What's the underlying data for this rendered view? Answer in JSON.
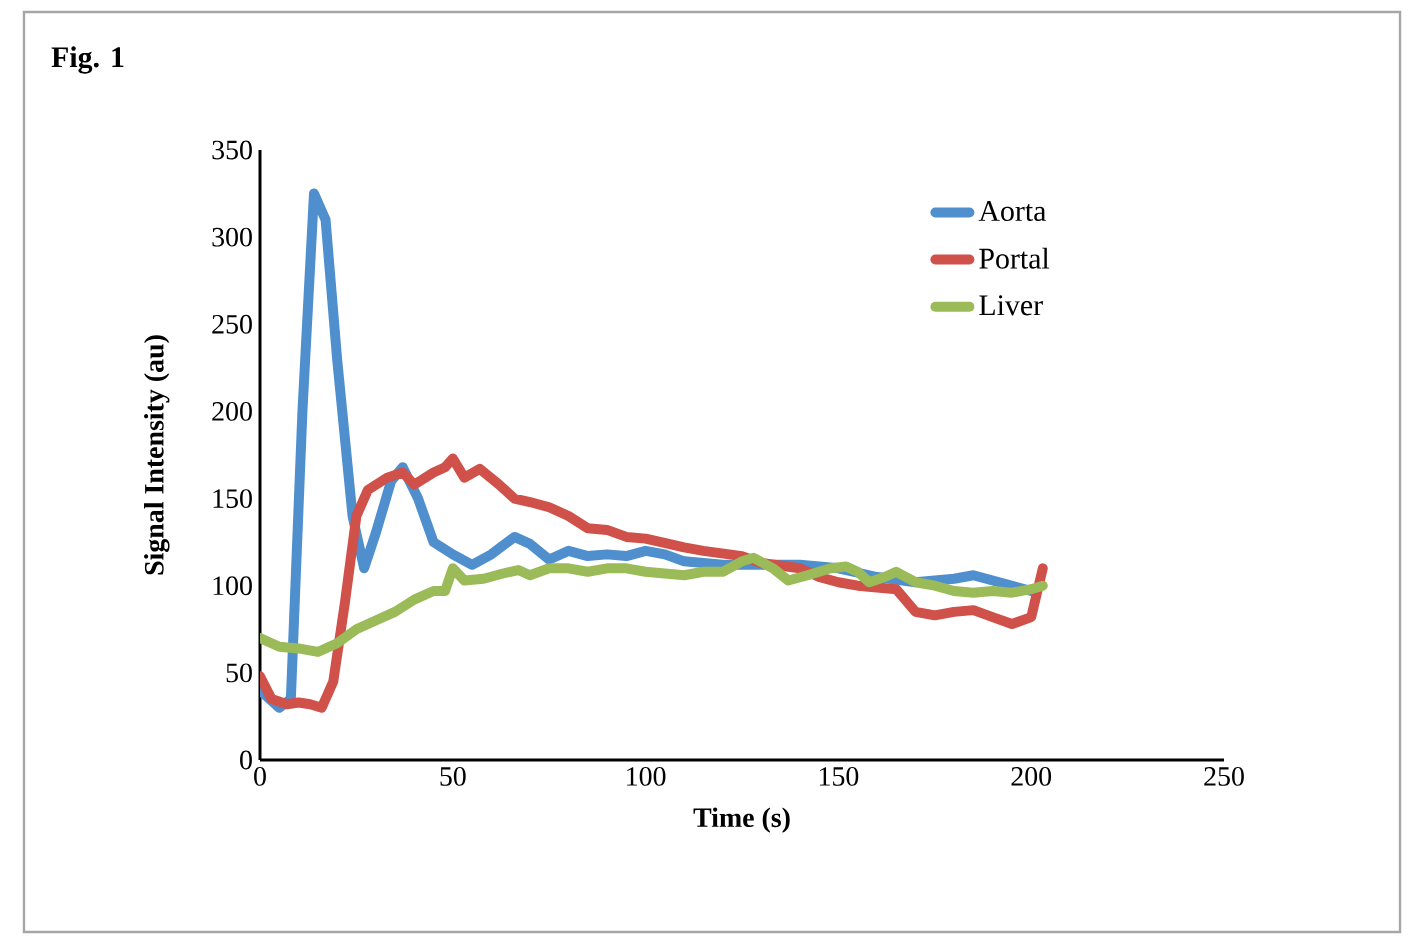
{
  "chart_data": {
    "type": "line",
    "title": "Fig. 1",
    "xlabel": "Time (s)",
    "ylabel": "Signal Intensity (au)",
    "xlim": [
      0,
      250
    ],
    "xticks": [
      0,
      50,
      100,
      150,
      200,
      250
    ],
    "ylim": [
      0,
      350
    ],
    "yticks": [
      0,
      50,
      100,
      150,
      200,
      250,
      300,
      350
    ],
    "grid": false,
    "legend": "top right",
    "marker": "none",
    "line_style": "solid",
    "series": [
      {
        "name": "Aorta",
        "color": "#4f8fcd",
        "x": [
          0,
          5,
          8,
          11,
          14,
          17,
          20,
          24,
          27,
          30,
          34,
          37,
          41,
          45,
          50,
          55,
          60,
          66,
          70,
          75,
          80,
          85,
          90,
          95,
          100,
          105,
          110,
          120,
          130,
          140,
          150,
          160,
          170,
          180,
          185,
          190,
          195,
          200
        ],
        "values": [
          40,
          30,
          35,
          200,
          325,
          310,
          230,
          140,
          110,
          130,
          160,
          168,
          150,
          125,
          118,
          112,
          118,
          128,
          124,
          115,
          120,
          117,
          118,
          117,
          120,
          118,
          114,
          112,
          112,
          112,
          110,
          105,
          102,
          104,
          106,
          103,
          100,
          97
        ]
      },
      {
        "name": "Portal",
        "color": "#d0504a",
        "x": [
          0,
          3,
          7,
          10,
          13,
          16,
          19,
          22,
          25,
          28,
          33,
          37,
          40,
          45,
          48,
          50,
          53,
          57,
          62,
          66,
          70,
          75,
          80,
          85,
          90,
          95,
          100,
          110,
          115,
          125,
          130,
          140,
          145,
          150,
          155,
          165,
          170,
          175,
          180,
          185,
          190,
          195,
          200,
          203
        ],
        "values": [
          48,
          35,
          32,
          33,
          32,
          30,
          45,
          90,
          140,
          155,
          162,
          165,
          158,
          165,
          168,
          173,
          162,
          167,
          158,
          150,
          148,
          145,
          140,
          133,
          132,
          128,
          127,
          122,
          120,
          117,
          113,
          110,
          105,
          102,
          100,
          98,
          85,
          83,
          85,
          86,
          82,
          78,
          82,
          110
        ]
      },
      {
        "name": "Liver",
        "color": "#9bbb59",
        "x": [
          0,
          5,
          10,
          15,
          20,
          25,
          30,
          35,
          40,
          45,
          48,
          50,
          53,
          58,
          63,
          67,
          70,
          75,
          80,
          85,
          90,
          95,
          100,
          105,
          110,
          115,
          120,
          125,
          128,
          133,
          137,
          142,
          148,
          152,
          155,
          158,
          162,
          165,
          170,
          175,
          180,
          185,
          190,
          195,
          200,
          203
        ],
        "values": [
          70,
          65,
          64,
          62,
          67,
          75,
          80,
          85,
          92,
          97,
          97,
          110,
          103,
          104,
          107,
          109,
          106,
          110,
          110,
          108,
          110,
          110,
          108,
          107,
          106,
          108,
          108,
          114,
          116,
          110,
          103,
          106,
          110,
          111,
          108,
          102,
          105,
          108,
          102,
          100,
          97,
          96,
          97,
          96,
          98,
          100
        ]
      }
    ]
  }
}
